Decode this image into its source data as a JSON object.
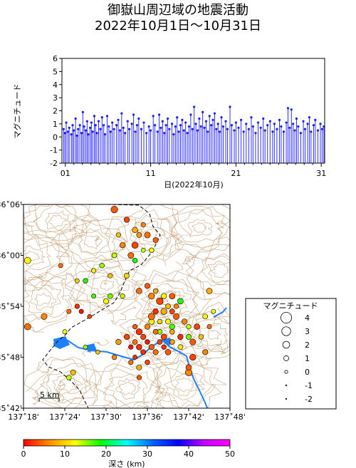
{
  "title": {
    "line1": "御嶽山周辺域の地震活動",
    "line2": "2022年10月1日～10月31日"
  },
  "colors": {
    "event_line": "#1a1aff",
    "river": "#1e7fff",
    "contour": "#c9a27a",
    "border": "#000000"
  },
  "chart_data": [
    {
      "type": "bar",
      "name": "time-magnitude",
      "ylabel": "マグニチュード",
      "xlabel": "日(2022年10月)",
      "ylim": [
        -2,
        6
      ],
      "xlim": [
        0.6,
        31.4
      ],
      "yticks": [
        "-2",
        "-1",
        "0",
        "1",
        "2",
        "3",
        "4",
        "5",
        "6"
      ],
      "xticks": [
        {
          "day": 1,
          "label": "01"
        },
        {
          "day": 11,
          "label": "11"
        },
        {
          "day": 21,
          "label": "21"
        },
        {
          "day": 31,
          "label": "31"
        }
      ],
      "events": [
        [
          0.8,
          0.6
        ],
        [
          0.95,
          0.3
        ],
        [
          1.1,
          1.1
        ],
        [
          1.3,
          0.4
        ],
        [
          1.45,
          0.7
        ],
        [
          1.7,
          0.2
        ],
        [
          1.85,
          0.9
        ],
        [
          2.0,
          0.5
        ],
        [
          2.2,
          1.4
        ],
        [
          2.35,
          0.1
        ],
        [
          2.5,
          0.6
        ],
        [
          2.7,
          0.9
        ],
        [
          2.9,
          0.3
        ],
        [
          3.05,
          1.9
        ],
        [
          3.2,
          0.8
        ],
        [
          3.4,
          0.5
        ],
        [
          3.55,
          1.2
        ],
        [
          3.7,
          0.2
        ],
        [
          3.9,
          0.7
        ],
        [
          4.05,
          1.1
        ],
        [
          4.2,
          0.4
        ],
        [
          4.4,
          1.6
        ],
        [
          4.55,
          0.9
        ],
        [
          4.7,
          0.3
        ],
        [
          4.9,
          1.2
        ],
        [
          5.1,
          0.6
        ],
        [
          5.3,
          1.5
        ],
        [
          5.5,
          0.9
        ],
        [
          5.65,
          0.2
        ],
        [
          5.9,
          1.6
        ],
        [
          6.1,
          0.8
        ],
        [
          6.3,
          0.4
        ],
        [
          6.5,
          1.1
        ],
        [
          6.7,
          0.6
        ],
        [
          7.0,
          0.9
        ],
        [
          7.2,
          1.3
        ],
        [
          7.4,
          0.5
        ],
        [
          7.6,
          1.8
        ],
        [
          7.8,
          0.7
        ],
        [
          8.0,
          0.3
        ],
        [
          8.3,
          1.2
        ],
        [
          8.5,
          0.6
        ],
        [
          8.8,
          1.0
        ],
        [
          9.0,
          1.7
        ],
        [
          9.2,
          0.4
        ],
        [
          9.4,
          0.9
        ],
        [
          9.6,
          1.4
        ],
        [
          9.9,
          0.6
        ],
        [
          10.2,
          1.1
        ],
        [
          10.5,
          0.3
        ],
        [
          10.8,
          0.8
        ],
        [
          11.0,
          0.5
        ],
        [
          11.3,
          1.6
        ],
        [
          11.5,
          0.9
        ],
        [
          11.8,
          0.4
        ],
        [
          12.0,
          1.7
        ],
        [
          12.2,
          0.7
        ],
        [
          12.4,
          1.2
        ],
        [
          12.6,
          0.3
        ],
        [
          12.8,
          0.9
        ],
        [
          13.0,
          1.4
        ],
        [
          13.2,
          0.6
        ],
        [
          13.5,
          1.0
        ],
        [
          13.7,
          0.2
        ],
        [
          13.9,
          0.8
        ],
        [
          14.1,
          1.5
        ],
        [
          14.3,
          0.4
        ],
        [
          14.5,
          0.9
        ],
        [
          14.7,
          1.3
        ],
        [
          14.9,
          0.5
        ],
        [
          15.1,
          1.1
        ],
        [
          15.3,
          0.3
        ],
        [
          15.5,
          0.8
        ],
        [
          15.7,
          1.7
        ],
        [
          15.9,
          0.6
        ],
        [
          16.1,
          2.3
        ],
        [
          16.3,
          1.0
        ],
        [
          16.5,
          0.5
        ],
        [
          16.7,
          1.4
        ],
        [
          16.9,
          0.8
        ],
        [
          17.1,
          1.9
        ],
        [
          17.3,
          0.7
        ],
        [
          17.5,
          1.2
        ],
        [
          17.7,
          0.4
        ],
        [
          17.9,
          1.6
        ],
        [
          18.1,
          0.9
        ],
        [
          18.3,
          1.3
        ],
        [
          18.5,
          1.8
        ],
        [
          18.7,
          0.6
        ],
        [
          18.9,
          1.0
        ],
        [
          19.1,
          0.4
        ],
        [
          19.3,
          1.5
        ],
        [
          19.5,
          0.8
        ],
        [
          19.8,
          1.2
        ],
        [
          20.0,
          0.6
        ],
        [
          20.3,
          2.3
        ],
        [
          20.5,
          0.9
        ],
        [
          20.8,
          0.5
        ],
        [
          21.0,
          1.1
        ],
        [
          21.3,
          0.7
        ],
        [
          21.6,
          1.3
        ],
        [
          21.9,
          0.4
        ],
        [
          22.2,
          1.0
        ],
        [
          22.5,
          0.6
        ],
        [
          22.8,
          1.5
        ],
        [
          23.0,
          0.8
        ],
        [
          23.3,
          0.3
        ],
        [
          23.6,
          1.1
        ],
        [
          23.9,
          0.7
        ],
        [
          24.2,
          1.4
        ],
        [
          24.4,
          0.5
        ],
        [
          24.7,
          0.9
        ],
        [
          25.0,
          1.2
        ],
        [
          25.3,
          0.4
        ],
        [
          25.5,
          1.0
        ],
        [
          25.8,
          0.6
        ],
        [
          26.1,
          1.3
        ],
        [
          26.3,
          0.8
        ],
        [
          26.6,
          0.4
        ],
        [
          26.9,
          1.1
        ],
        [
          27.1,
          2.2
        ],
        [
          27.3,
          0.7
        ],
        [
          27.5,
          2.1
        ],
        [
          27.7,
          1.0
        ],
        [
          27.9,
          0.5
        ],
        [
          28.1,
          1.4
        ],
        [
          28.3,
          0.8
        ],
        [
          28.6,
          0.3
        ],
        [
          28.9,
          1.2
        ],
        [
          29.1,
          0.6
        ],
        [
          29.4,
          1.0
        ],
        [
          29.6,
          1.5
        ],
        [
          29.8,
          0.4
        ],
        [
          30.1,
          0.9
        ],
        [
          30.3,
          1.3
        ],
        [
          30.6,
          0.5
        ],
        [
          30.9,
          1.0
        ],
        [
          31.1,
          0.6
        ],
        [
          31.3,
          0.8
        ]
      ]
    },
    {
      "type": "scatter",
      "name": "epicenter-map",
      "xlim": [
        137.3,
        137.8
      ],
      "ylim": [
        35.7,
        36.1
      ],
      "xticks": [
        {
          "v": 137.3,
          "label": "137˚18'"
        },
        {
          "v": 137.4,
          "label": "137˚24'"
        },
        {
          "v": 137.5,
          "label": "137˚30'"
        },
        {
          "v": 137.6,
          "label": "137˚36'"
        },
        {
          "v": 137.7,
          "label": "137˚42'"
        },
        {
          "v": 137.8,
          "label": "137˚48'"
        }
      ],
      "yticks": [
        {
          "v": 35.7,
          "label": "35˚42'"
        },
        {
          "v": 35.8,
          "label": "35˚48'"
        },
        {
          "v": 35.9,
          "label": "35˚54'"
        },
        {
          "v": 36.0,
          "label": "36˚00'"
        },
        {
          "v": 36.1,
          "label": "36˚06'"
        }
      ],
      "scale_label": "5 km",
      "quakes": [
        [
          137.52,
          36.09,
          1.6,
          4
        ],
        [
          137.55,
          36.07,
          0.9,
          3
        ],
        [
          137.59,
          36.06,
          0.5,
          6
        ],
        [
          137.6,
          36.04,
          1.2,
          5
        ],
        [
          137.58,
          36.04,
          0.7,
          7
        ],
        [
          137.57,
          36.05,
          1.0,
          8
        ],
        [
          137.62,
          36.03,
          0.8,
          4
        ],
        [
          137.61,
          36.01,
          0.6,
          12
        ],
        [
          137.57,
          36.02,
          1.4,
          3
        ],
        [
          137.53,
          36.04,
          0.5,
          9
        ],
        [
          137.54,
          36.02,
          0.9,
          6
        ],
        [
          137.56,
          36.0,
          1.1,
          5
        ],
        [
          137.59,
          36.01,
          0.3,
          14
        ],
        [
          137.57,
          35.99,
          0.6,
          18
        ],
        [
          137.55,
          35.96,
          0.8,
          10
        ],
        [
          137.52,
          36.0,
          0.7,
          14
        ],
        [
          137.31,
          35.99,
          1.4,
          12
        ],
        [
          137.39,
          35.98,
          0.4,
          5
        ],
        [
          137.49,
          35.98,
          0.6,
          15
        ],
        [
          137.51,
          35.96,
          0.5,
          9
        ],
        [
          137.47,
          35.92,
          0.4,
          17
        ],
        [
          137.5,
          35.91,
          0.9,
          13
        ],
        [
          137.51,
          35.92,
          0.7,
          16
        ],
        [
          137.54,
          35.92,
          0.5,
          14
        ],
        [
          137.58,
          35.93,
          1.0,
          5
        ],
        [
          137.6,
          35.94,
          0.8,
          4
        ],
        [
          137.61,
          35.92,
          1.3,
          6
        ],
        [
          137.62,
          35.93,
          0.6,
          8
        ],
        [
          137.63,
          35.91,
          1.6,
          3
        ],
        [
          137.64,
          35.92,
          0.9,
          12
        ],
        [
          137.65,
          35.9,
          0.7,
          9
        ],
        [
          137.66,
          35.92,
          1.1,
          4
        ],
        [
          137.67,
          35.9,
          0.5,
          6
        ],
        [
          137.68,
          35.91,
          1.0,
          18
        ],
        [
          137.66,
          35.89,
          0.7,
          3
        ],
        [
          137.64,
          35.89,
          1.3,
          8
        ],
        [
          137.62,
          35.89,
          0.9,
          2
        ],
        [
          137.61,
          35.88,
          1.5,
          5
        ],
        [
          137.63,
          35.87,
          0.6,
          10
        ],
        [
          137.65,
          35.87,
          0.8,
          13
        ],
        [
          137.67,
          35.88,
          1.2,
          4
        ],
        [
          137.69,
          35.87,
          0.9,
          6
        ],
        [
          137.7,
          35.86,
          0.5,
          14
        ],
        [
          137.72,
          35.86,
          1.0,
          3
        ],
        [
          137.74,
          35.88,
          0.7,
          12
        ],
        [
          137.75,
          35.86,
          0.4,
          5
        ],
        [
          137.73,
          35.84,
          0.6,
          9
        ],
        [
          137.71,
          35.83,
          1.2,
          4
        ],
        [
          137.7,
          35.84,
          0.8,
          16
        ],
        [
          137.68,
          35.84,
          0.9,
          2
        ],
        [
          137.66,
          35.85,
          0.6,
          8
        ],
        [
          137.64,
          35.84,
          1.1,
          3
        ],
        [
          137.62,
          35.85,
          0.7,
          5
        ],
        [
          137.6,
          35.86,
          0.9,
          6
        ],
        [
          137.58,
          35.85,
          1.3,
          2
        ],
        [
          137.57,
          35.86,
          0.5,
          4
        ],
        [
          137.59,
          35.84,
          0.8,
          3
        ],
        [
          137.6,
          35.83,
          0.6,
          1
        ],
        [
          137.58,
          35.82,
          1.0,
          2
        ],
        [
          137.57,
          35.83,
          0.7,
          5
        ],
        [
          137.55,
          35.84,
          0.9,
          3
        ],
        [
          137.56,
          35.82,
          0.5,
          1
        ],
        [
          137.59,
          35.81,
          0.7,
          2
        ],
        [
          137.61,
          35.82,
          0.9,
          4
        ],
        [
          137.63,
          35.83,
          0.6,
          3
        ],
        [
          137.62,
          35.81,
          0.8,
          5
        ],
        [
          137.64,
          35.82,
          0.5,
          2
        ],
        [
          137.66,
          35.83,
          0.7,
          7
        ],
        [
          137.65,
          35.81,
          1.0,
          4
        ],
        [
          137.6,
          35.79,
          0.6,
          3
        ],
        [
          137.57,
          35.8,
          0.4,
          2
        ],
        [
          137.56,
          35.79,
          0.5,
          5
        ],
        [
          137.52,
          35.8,
          0.6,
          6
        ],
        [
          137.48,
          35.81,
          0.3,
          9
        ],
        [
          137.63,
          35.85,
          0.7,
          15
        ],
        [
          137.61,
          35.87,
          1.0,
          12
        ],
        [
          137.66,
          35.86,
          0.9,
          17
        ],
        [
          137.68,
          35.82,
          0.7,
          11
        ],
        [
          137.71,
          35.8,
          1.3,
          3
        ],
        [
          137.74,
          35.81,
          0.8,
          6
        ],
        [
          137.7,
          35.78,
          1.0,
          4
        ],
        [
          137.75,
          35.93,
          1.1,
          8
        ],
        [
          137.76,
          35.89,
          0.4,
          13
        ],
        [
          137.43,
          35.9,
          0.5,
          2
        ],
        [
          137.44,
          35.89,
          0.4,
          1
        ],
        [
          137.46,
          35.88,
          0.3,
          3
        ],
        [
          137.41,
          35.89,
          0.4,
          5
        ],
        [
          137.35,
          35.88,
          1.2,
          6
        ],
        [
          137.31,
          35.86,
          1.4,
          5
        ],
        [
          137.4,
          35.85,
          0.4,
          13
        ],
        [
          137.45,
          35.82,
          0.3,
          15
        ],
        [
          137.42,
          35.77,
          0.8,
          9
        ],
        [
          137.41,
          35.76,
          0.6,
          14
        ],
        [
          137.58,
          35.76,
          0.5,
          4
        ],
        [
          137.7,
          35.77,
          1.6,
          6
        ],
        [
          137.58,
          35.78,
          0.8,
          8
        ],
        [
          137.45,
          35.95,
          0.6,
          18
        ],
        [
          137.47,
          35.97,
          0.4,
          12
        ],
        [
          137.43,
          35.95,
          0.3,
          10
        ],
        [
          137.53,
          35.83,
          0.9,
          7
        ]
      ]
    },
    {
      "type": "legend",
      "name": "magnitude-legend",
      "title": "マグニチュード",
      "entries": [
        "4",
        "3",
        "2",
        "1",
        "0",
        "-1",
        "-2"
      ]
    },
    {
      "type": "colorbar",
      "name": "depth-colorbar",
      "label": "深さ (km)",
      "range": [
        0,
        50
      ],
      "ticks": [
        "0",
        "10",
        "20",
        "30",
        "40",
        "50"
      ],
      "stops": [
        "#ff0000",
        "#ff8c00",
        "#ffff00",
        "#00ff00",
        "#00ffff",
        "#0064ff",
        "#0000ff",
        "#c800ff",
        "#ff00ff"
      ]
    }
  ]
}
